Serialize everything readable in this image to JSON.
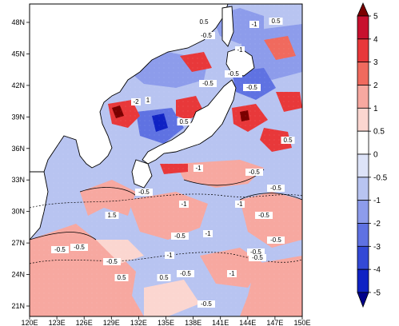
{
  "map": {
    "lon_ticks": [
      "120E",
      "123E",
      "126E",
      "129E",
      "132E",
      "135E",
      "138E",
      "141E",
      "144E",
      "147E",
      "150E"
    ],
    "lat_ticks": [
      "48N",
      "45N",
      "42N",
      "39N",
      "36N",
      "33N",
      "30N",
      "27N",
      "24N",
      "21N"
    ],
    "contour_labels": [
      "-0.5",
      "-1",
      "0.5",
      "0.5",
      "-1",
      "1",
      "-2",
      "0.5",
      "-0.5",
      "-0.5",
      "-0.5",
      "-1",
      "1.5",
      "-1",
      "-1",
      "-0.5",
      "-0.5",
      "-0.5",
      "-1",
      "0.5",
      "-0.5",
      "-0.5",
      "0.5",
      "-0.5",
      "-1",
      "-0.5",
      "-0.5",
      "-0.5",
      "-1",
      "-0.5",
      "0.5",
      "-0.5",
      "-0.5",
      "-0.5"
    ]
  },
  "colorbar": {
    "labels": [
      "5",
      "4",
      "3",
      "2",
      "1",
      "0.5",
      "0",
      "-0.5",
      "-1",
      "-2",
      "-3",
      "-4",
      "-5"
    ],
    "colors": [
      "#7a0000",
      "#c8102e",
      "#e8383a",
      "#f06a5e",
      "#f7a8a0",
      "#fbd6d0",
      "#ffffff",
      "#dde3f8",
      "#b8c4f1",
      "#8d9ceb",
      "#5f72e2",
      "#3349d6",
      "#0f22c4",
      "#00008a"
    ]
  },
  "colors": {
    "land": "#ffffff",
    "ocean_blue_light": "#b8c4f1",
    "ocean_pink": "#f7a8a0"
  }
}
